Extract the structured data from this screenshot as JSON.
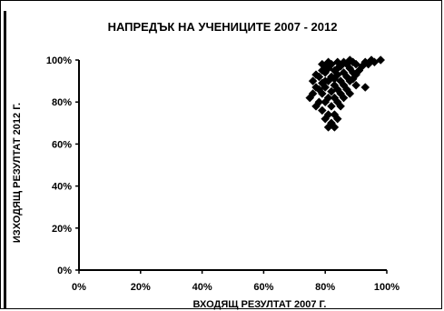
{
  "chart_data": {
    "type": "scatter",
    "title": "НАПРЕДЪК НА УЧЕНИЦИТЕ 2007 - 2012",
    "xlabel": "ВХОДЯЩ РЕЗУЛТАТ 2007 Г.",
    "ylabel": "ИЗХОДЯЩ РЕЗУЛТАТ 2012 Г.",
    "xlim": [
      0,
      100
    ],
    "ylim": [
      0,
      100
    ],
    "x_ticks": [
      "0%",
      "20%",
      "40%",
      "60%",
      "80%",
      "100%"
    ],
    "y_ticks": [
      "0%",
      "20%",
      "40%",
      "60%",
      "80%",
      "100%"
    ],
    "grid": false,
    "legend": "none",
    "marker": "diamond",
    "marker_color": "#000000",
    "series": [
      {
        "points": [
          [
            75,
            82
          ],
          [
            76,
            84
          ],
          [
            76,
            90
          ],
          [
            77,
            78
          ],
          [
            77,
            87
          ],
          [
            77,
            93
          ],
          [
            78,
            80
          ],
          [
            78,
            86
          ],
          [
            78,
            92
          ],
          [
            79,
            76
          ],
          [
            79,
            84
          ],
          [
            79,
            89
          ],
          [
            79,
            95
          ],
          [
            80,
            72
          ],
          [
            80,
            80
          ],
          [
            80,
            87
          ],
          [
            80,
            94
          ],
          [
            80,
            97
          ],
          [
            81,
            68
          ],
          [
            81,
            74
          ],
          [
            81,
            82
          ],
          [
            81,
            90
          ],
          [
            81,
            96
          ],
          [
            82,
            70
          ],
          [
            82,
            78
          ],
          [
            82,
            85
          ],
          [
            82,
            92
          ],
          [
            82,
            98
          ],
          [
            83,
            68
          ],
          [
            83,
            74
          ],
          [
            83,
            82
          ],
          [
            83,
            88
          ],
          [
            83,
            95
          ],
          [
            84,
            72
          ],
          [
            84,
            80
          ],
          [
            84,
            86
          ],
          [
            84,
            93
          ],
          [
            84,
            99
          ],
          [
            85,
            78
          ],
          [
            85,
            84
          ],
          [
            85,
            90
          ],
          [
            85,
            97
          ],
          [
            86,
            82
          ],
          [
            86,
            88
          ],
          [
            86,
            94
          ],
          [
            87,
            86
          ],
          [
            87,
            92
          ],
          [
            87,
            98
          ],
          [
            88,
            84
          ],
          [
            88,
            90
          ],
          [
            88,
            96
          ],
          [
            89,
            94
          ],
          [
            89,
            99
          ],
          [
            90,
            88
          ],
          [
            90,
            93
          ],
          [
            90,
            98
          ],
          [
            91,
            95
          ],
          [
            92,
            97
          ],
          [
            93,
            87
          ],
          [
            93,
            99
          ],
          [
            94,
            98
          ],
          [
            95,
            100
          ],
          [
            96,
            99
          ],
          [
            98,
            100
          ],
          [
            79,
            98
          ],
          [
            81,
            99
          ],
          [
            84,
            96
          ],
          [
            86,
            99
          ],
          [
            88,
            100
          ],
          [
            89,
            91
          ],
          [
            83,
            91
          ],
          [
            80,
            90
          ]
        ]
      }
    ]
  }
}
